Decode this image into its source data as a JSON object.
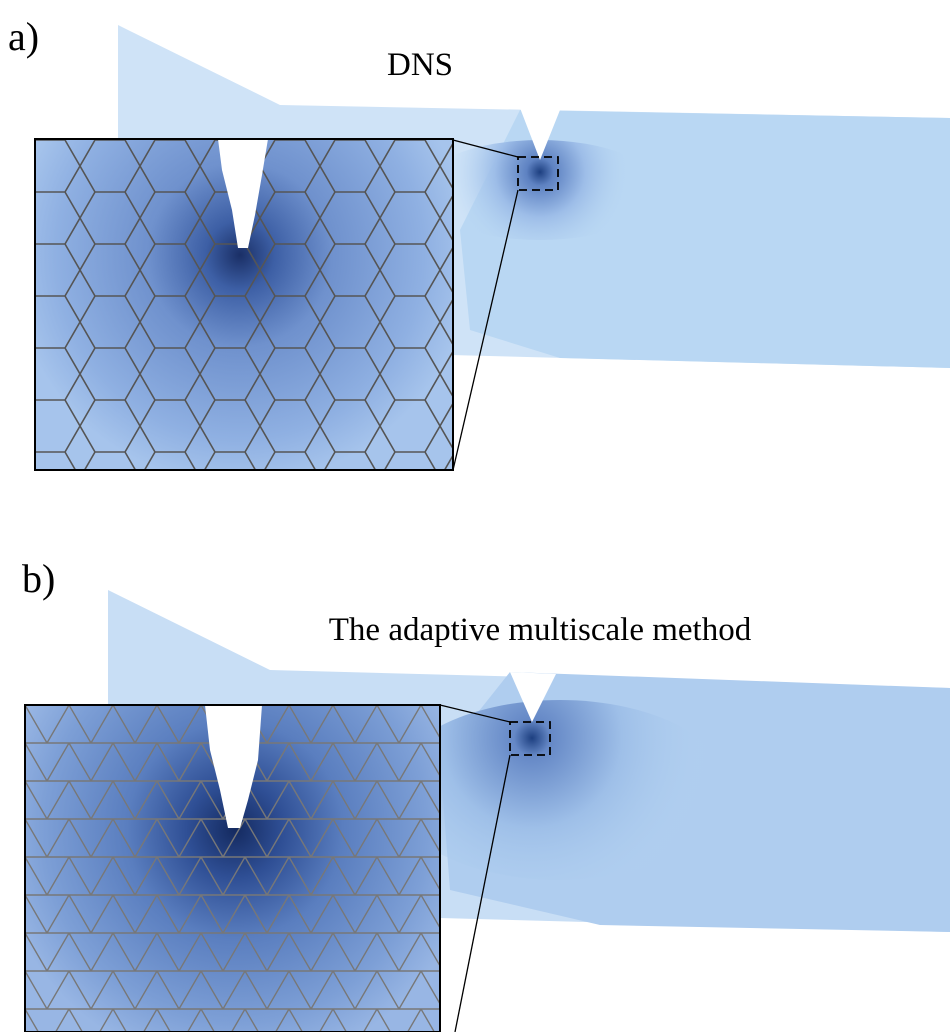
{
  "panel_a": {
    "label": "a)",
    "title": "DNS"
  },
  "panel_b": {
    "label": "b)",
    "title": "The adaptive multiscale method"
  }
}
